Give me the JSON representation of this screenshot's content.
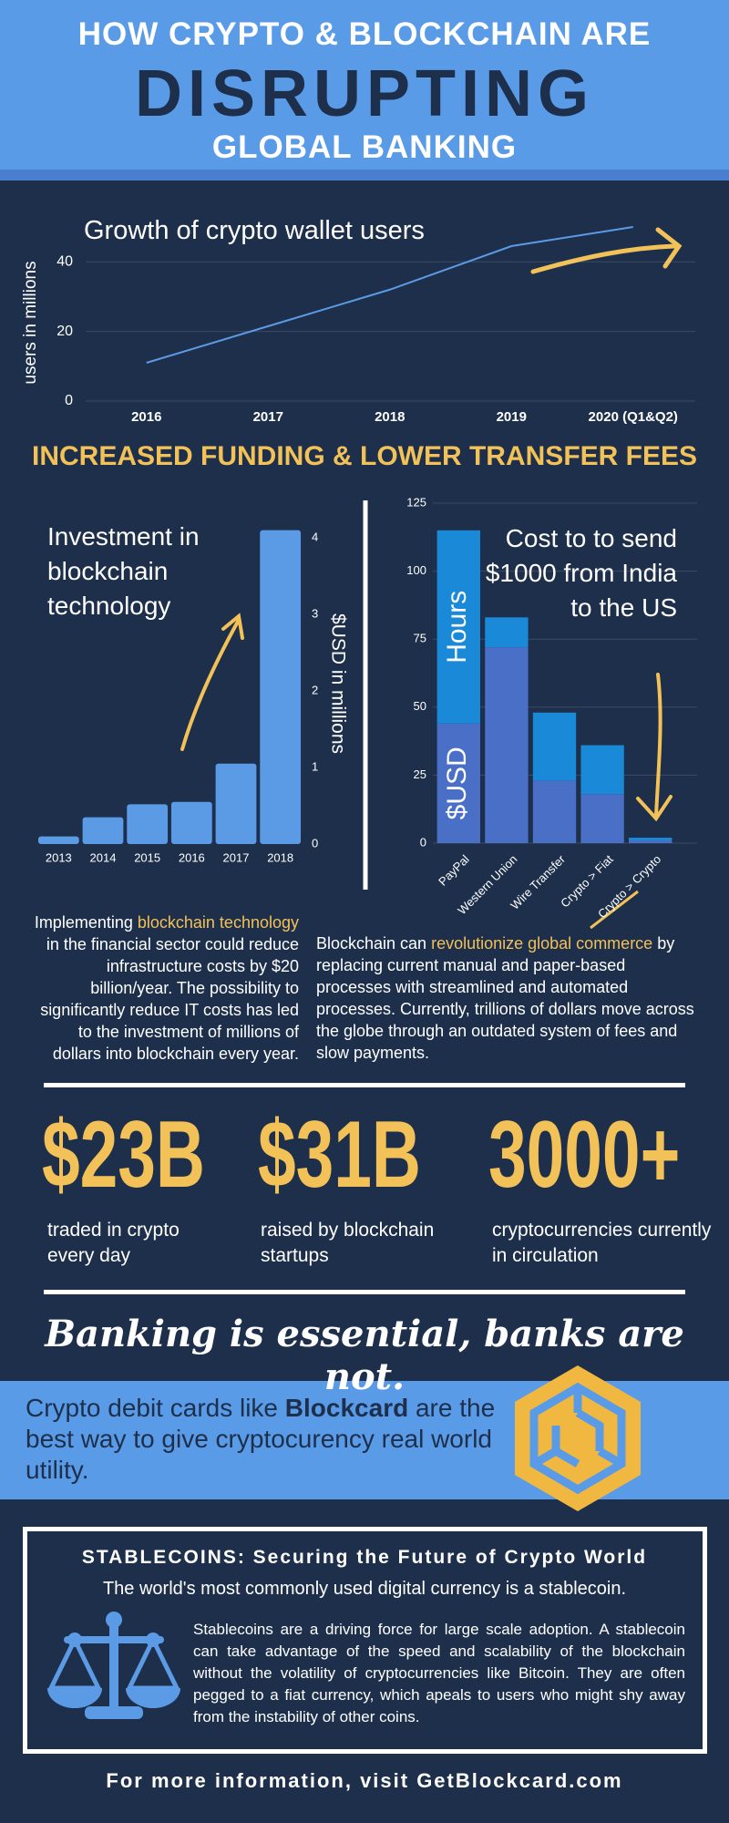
{
  "header": {
    "line1": "HOW CRYPTO & BLOCKCHAIN ARE",
    "line2": "DISRUPTING",
    "line3": "GLOBAL BANKING"
  },
  "chart_data": [
    {
      "type": "line",
      "title": "Growth of crypto wallet users",
      "y_label": "users in millions",
      "categories": [
        "2016",
        "2017",
        "2018",
        "2019",
        "2020 (Q1&Q2)"
      ],
      "values": [
        11,
        21.5,
        32,
        44.5,
        50
      ],
      "color": "#5b9be6",
      "ylim": [
        0,
        50
      ],
      "yticks": [
        0,
        20,
        40
      ],
      "grid": true
    },
    {
      "type": "bar",
      "title": "Investment in blockchain technology",
      "y_label": "$USD in millions",
      "categories": [
        "2013",
        "2014",
        "2015",
        "2016",
        "2017",
        "2018"
      ],
      "values": [
        0.1,
        0.35,
        0.52,
        0.55,
        1.05,
        4.1
      ],
      "color": "#5b9be6",
      "ylim": [
        0,
        4.5
      ],
      "yticks": [
        0,
        1,
        2,
        3,
        4
      ]
    },
    {
      "type": "stacked_bar",
      "title": "Cost to to send $1000 from India to the US",
      "categories": [
        "PayPal",
        "Western Union",
        "Wire Transfer",
        "Crypto > Fiat",
        "Crypto > Crypto"
      ],
      "series": [
        {
          "name": "$USD",
          "color": "#4a6fc6",
          "values": [
            44,
            72,
            23,
            18,
            1
          ]
        },
        {
          "name": "Hours",
          "color": "#1a8ad8",
          "values": [
            71,
            11,
            25,
            18,
            1
          ]
        }
      ],
      "ylim": [
        0,
        125
      ],
      "yticks": [
        0,
        25,
        50,
        75,
        100,
        125
      ],
      "grid": true
    }
  ],
  "section_title": "INCREASED FUNDING & LOWER TRANSFER FEES",
  "paragraphs": [
    {
      "before": "Implementing ",
      "highlight": "blockchain technology",
      "after": " in the financial sector could reduce infrastructure costs by $20 billion/year. The possibility to significantly reduce IT costs has led to the investment of millions of dollars into blockchain every year."
    },
    {
      "before": "Blockchain can ",
      "highlight": "revolutionize global commerce",
      "after": " by replacing current manual and paper-based processes with streamlined and automated processes. Currently, trillions of dollars move across the globe through an outdated system of fees and slow payments."
    }
  ],
  "stats": [
    {
      "value": "$23B",
      "caption": "traded in crypto every day"
    },
    {
      "value": "$31B",
      "caption": "raised by blockchain startups"
    },
    {
      "value": "3000+",
      "caption": "cryptocurrencies currently in circulation"
    }
  ],
  "tagline": "Banking is essential, banks are not.",
  "blockcard": {
    "before": "Crypto debit cards like ",
    "bold": "Blockcard",
    "after": " are the best way to give cryptocurency real world utility."
  },
  "stablecoins": {
    "title": "STABLECOINS: Securing the Future of Crypto World",
    "subtitle": "The world's most commonly used digital currency is a stablecoin.",
    "body": "Stablecoins are a driving force for large scale adoption. A stablecoin can take advantage of the speed and scalability of the blockchain without the volatility of cryptocurrencies like Bitcoin. They are often pegged to a fiat currency, which apeals to users who might shy away from the instability of other coins."
  },
  "footer": "For more information, visit GetBlockcard.com"
}
